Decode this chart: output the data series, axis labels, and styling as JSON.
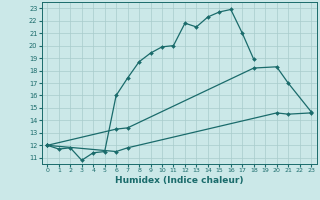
{
  "xlabel": "Humidex (Indice chaleur)",
  "bg_color": "#cbe8e8",
  "grid_color": "#a8cccc",
  "line_color": "#1a6b6b",
  "xlim": [
    -0.5,
    23.5
  ],
  "ylim": [
    10.5,
    23.5
  ],
  "xticks": [
    0,
    1,
    2,
    3,
    4,
    5,
    6,
    7,
    8,
    9,
    10,
    11,
    12,
    13,
    14,
    15,
    16,
    17,
    18,
    19,
    20,
    21,
    22,
    23
  ],
  "yticks": [
    11,
    12,
    13,
    14,
    15,
    16,
    17,
    18,
    19,
    20,
    21,
    22,
    23
  ],
  "curve1": {
    "x": [
      0,
      1,
      2,
      3,
      4,
      5,
      6,
      7,
      8,
      9,
      10,
      11,
      12,
      13,
      14,
      15,
      16,
      17,
      18
    ],
    "y": [
      12.0,
      11.7,
      11.8,
      10.8,
      11.4,
      11.5,
      16.0,
      17.4,
      18.7,
      19.4,
      19.9,
      20.0,
      21.8,
      21.5,
      22.3,
      22.7,
      22.9,
      21.0,
      18.9
    ]
  },
  "curve2": {
    "x": [
      0,
      6,
      7,
      18,
      20,
      21,
      23
    ],
    "y": [
      12.0,
      13.3,
      13.4,
      18.2,
      18.3,
      17.0,
      14.7
    ]
  },
  "curve3": {
    "x": [
      0,
      6,
      7,
      20,
      21,
      23
    ],
    "y": [
      12.0,
      11.5,
      11.8,
      14.6,
      14.5,
      14.6
    ]
  }
}
